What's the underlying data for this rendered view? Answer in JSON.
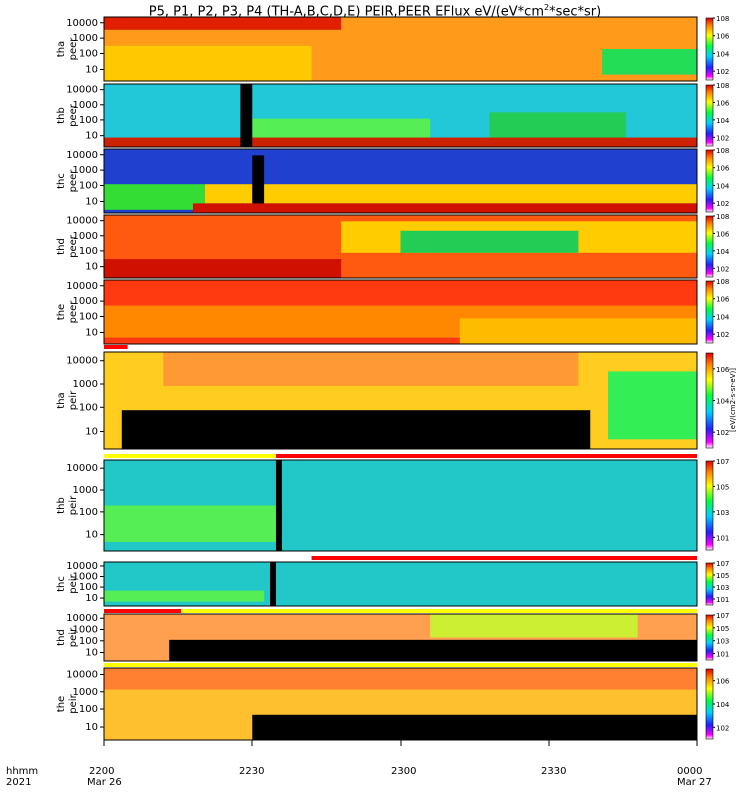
{
  "title": {
    "prefix": "P5, P1, P2, P3, P4 (TH-A,B,C,D,E) PEIR,PEER EFlux eV/(eV*cm",
    "sup": "2",
    "suffix": "*sec*sr)"
  },
  "xaxis": {
    "row1_label": "hhmm",
    "row2_label": "2021",
    "ticks": [
      {
        "time": "2200",
        "date": "Mar 26"
      },
      {
        "time": "2230",
        "date": ""
      },
      {
        "time": "2300",
        "date": ""
      },
      {
        "time": "2330",
        "date": ""
      },
      {
        "time": "0000",
        "date": "Mar 27"
      }
    ]
  },
  "colorbar_label": "[eV/(cm2-s-sr-eV)]",
  "chart_data": {
    "type": "heatmap",
    "x_range": [
      "2021-03-26 22:00",
      "2021-03-27 00:00"
    ],
    "y_scale": "log",
    "y_ticks": [
      "10000",
      "1000",
      "100",
      "10"
    ],
    "panels": [
      {
        "probe": "tha",
        "species": "peer",
        "cbar_ticks": [
          "10^8",
          "10^6",
          "10^4",
          "10^2"
        ],
        "cbar_range": [
          1,
          8
        ]
      },
      {
        "probe": "thb",
        "species": "peer",
        "cbar_ticks": [
          "10^8",
          "10^6",
          "10^4",
          "10^2"
        ],
        "cbar_range": [
          1,
          8
        ]
      },
      {
        "probe": "thc",
        "species": "peer",
        "cbar_ticks": [
          "10^8",
          "10^6",
          "10^4",
          "10^2"
        ],
        "cbar_range": [
          1,
          8
        ]
      },
      {
        "probe": "thd",
        "species": "peer",
        "cbar_ticks": [
          "10^8",
          "10^6",
          "10^4",
          "10^2"
        ],
        "cbar_range": [
          1,
          8
        ]
      },
      {
        "probe": "the",
        "species": "peer",
        "cbar_ticks": [
          "10^8",
          "10^6",
          "10^4",
          "10^2"
        ],
        "cbar_range": [
          1,
          8
        ]
      },
      {
        "probe": "tha",
        "species": "peir",
        "cbar_ticks": [
          "10^6",
          "10^4",
          "10^2"
        ],
        "cbar_range": [
          1,
          7
        ]
      },
      {
        "probe": "thb",
        "species": "peir",
        "cbar_ticks": [
          "10^7",
          "10^5",
          "10^3",
          "10^1"
        ],
        "cbar_range": [
          0,
          7
        ]
      },
      {
        "probe": "thc",
        "species": "peir",
        "cbar_ticks": [
          "10^7",
          "10^5",
          "10^3",
          "10^1"
        ],
        "cbar_range": [
          0,
          7
        ]
      },
      {
        "probe": "thd",
        "species": "peir",
        "cbar_ticks": [
          "10^7",
          "10^5",
          "10^3",
          "10^1"
        ],
        "cbar_range": [
          0,
          7
        ]
      },
      {
        "probe": "the",
        "species": "peir",
        "cbar_ticks": [
          "10^6",
          "10^4",
          "10^2"
        ],
        "cbar_range": [
          1,
          7
        ]
      }
    ]
  }
}
